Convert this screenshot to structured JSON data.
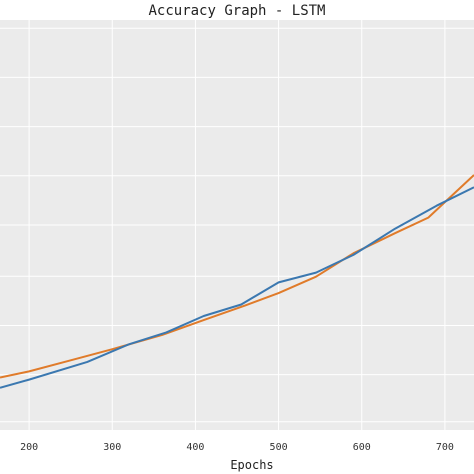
{
  "chart_data": {
    "type": "line",
    "title": "Accuracy Graph - LSTM",
    "xlabel": "Epochs",
    "ylabel": "",
    "xlim": [
      165,
      735
    ],
    "ylim": [
      0,
      1
    ],
    "x_ticks": [
      "200",
      "300",
      "400",
      "500",
      "600",
      "700"
    ],
    "grid": true,
    "legend": "none",
    "series": [
      {
        "color": "#e07b2a",
        "x": [
          165,
          200,
          250,
          300,
          360,
          410,
          460,
          500,
          545,
          590,
          640,
          680,
          735
        ],
        "y": [
          0.128,
          0.143,
          0.17,
          0.197,
          0.232,
          0.268,
          0.304,
          0.334,
          0.374,
          0.431,
          0.48,
          0.518,
          0.622
        ]
      },
      {
        "color": "#3b78b0",
        "x": [
          165,
          200,
          270,
          320,
          365,
          410,
          455,
          500,
          545,
          590,
          640,
          690,
          735
        ],
        "y": [
          0.103,
          0.123,
          0.166,
          0.209,
          0.238,
          0.278,
          0.306,
          0.36,
          0.384,
          0.427,
          0.491,
          0.547,
          0.592
        ]
      }
    ]
  }
}
